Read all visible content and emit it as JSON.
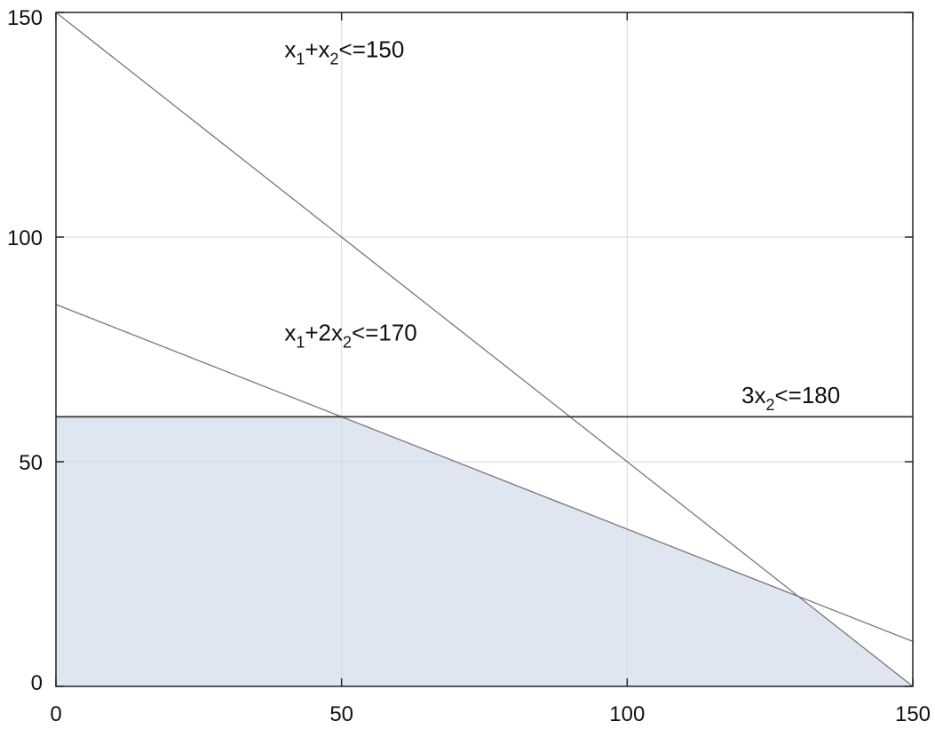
{
  "chart_data": {
    "type": "line",
    "title": "",
    "xlabel": "",
    "ylabel": "",
    "xlim": [
      0,
      150
    ],
    "ylim": [
      0,
      150
    ],
    "x_ticks": [
      "0",
      "50",
      "100",
      "150"
    ],
    "y_ticks": [
      "0",
      "50",
      "100",
      "150"
    ],
    "grid": true,
    "series": [
      {
        "name": "x1+x2<=150",
        "x": [
          0,
          150
        ],
        "y": [
          150,
          0
        ]
      },
      {
        "name": "x1+2x2<=170",
        "x": [
          0,
          150
        ],
        "y": [
          85,
          10
        ]
      },
      {
        "name": "3x2<=180",
        "x": [
          0,
          150
        ],
        "y": [
          60,
          60
        ]
      }
    ],
    "feasible_region": {
      "vertices": [
        [
          0,
          0
        ],
        [
          0,
          60
        ],
        [
          50,
          60
        ],
        [
          130,
          20
        ],
        [
          150,
          0
        ]
      ],
      "color": "#dfe6f2"
    },
    "annotations": [
      {
        "id": "c1",
        "pos": [
          40,
          140
        ],
        "parts": [
          [
            "x",
            ""
          ],
          [
            "1",
            "sub"
          ],
          [
            "+x",
            ""
          ],
          [
            "2",
            "sub"
          ],
          [
            "<=150",
            ""
          ]
        ]
      },
      {
        "id": "c2",
        "pos": [
          40,
          77
        ],
        "parts": [
          [
            "x",
            ""
          ],
          [
            "1",
            "sub"
          ],
          [
            "+2x",
            ""
          ],
          [
            "2",
            "sub"
          ],
          [
            "<=170",
            ""
          ]
        ]
      },
      {
        "id": "c3",
        "pos": [
          120,
          63
        ],
        "parts": [
          [
            "3x",
            ""
          ],
          [
            "2",
            "sub"
          ],
          [
            "<=180",
            ""
          ]
        ]
      }
    ],
    "colors": {
      "grid": "#d4d8de",
      "axes": "#222222",
      "constraint_lines": "#777777",
      "horizontal_line": "#333333"
    }
  }
}
